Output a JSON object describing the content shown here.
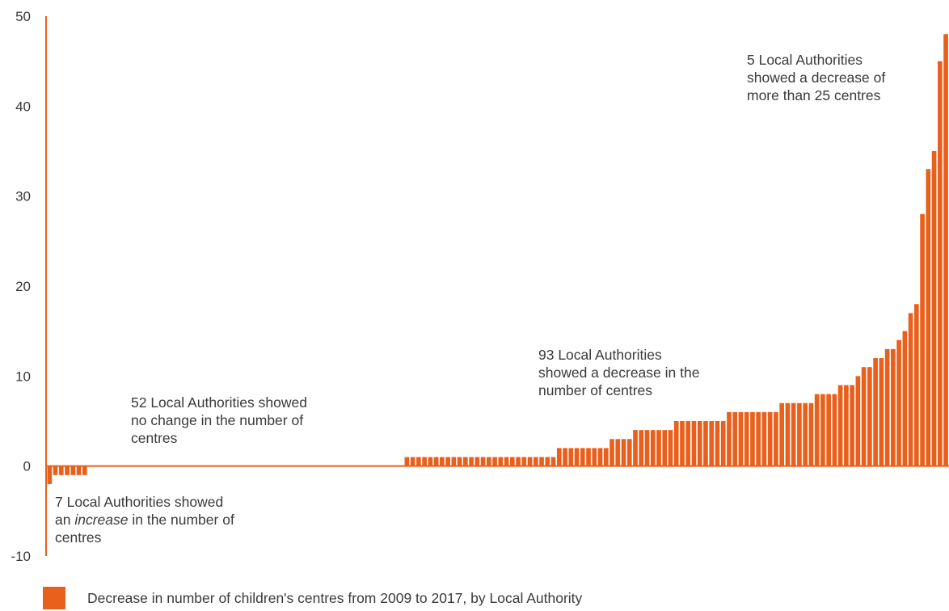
{
  "chart_data": {
    "type": "bar",
    "ylim": [
      -10,
      50
    ],
    "yticks": [
      "-10",
      "0",
      "10",
      "20",
      "30",
      "40",
      "50"
    ],
    "grid": false,
    "legend_position": "bottom-left",
    "color": "#e8601c",
    "series": [
      {
        "name": "Decrease in number of children's centres from 2009 to 2017, by Local Authority",
        "values": [
          -2,
          -1,
          -1,
          -1,
          -1,
          -1,
          -1,
          0,
          0,
          0,
          0,
          0,
          0,
          0,
          0,
          0,
          0,
          0,
          0,
          0,
          0,
          0,
          0,
          0,
          0,
          0,
          0,
          0,
          0,
          0,
          0,
          0,
          0,
          0,
          0,
          0,
          0,
          0,
          0,
          0,
          0,
          0,
          0,
          0,
          0,
          0,
          0,
          0,
          0,
          0,
          0,
          0,
          0,
          0,
          0,
          0,
          0,
          0,
          0,
          0,
          0,
          1,
          1,
          1,
          1,
          1,
          1,
          1,
          1,
          1,
          1,
          1,
          1,
          1,
          1,
          1,
          1,
          1,
          1,
          1,
          1,
          1,
          1,
          1,
          1,
          1,
          1,
          2,
          2,
          2,
          2,
          2,
          2,
          2,
          2,
          2,
          3,
          3,
          3,
          3,
          4,
          4,
          4,
          4,
          4,
          4,
          4,
          5,
          5,
          5,
          5,
          5,
          5,
          5,
          5,
          5,
          6,
          6,
          6,
          6,
          6,
          6,
          6,
          6,
          6,
          7,
          7,
          7,
          7,
          7,
          7,
          8,
          8,
          8,
          8,
          9,
          9,
          9,
          10,
          11,
          11,
          12,
          12,
          13,
          13,
          14,
          15,
          17,
          18,
          28,
          33,
          35,
          45,
          48
        ]
      }
    ],
    "annotations": {
      "increase_line1": "7 Local Authorities showed",
      "increase_line2_pre": "an ",
      "increase_line2_em": "increase",
      "increase_line2_post": " in the number of",
      "increase_line3": "centres",
      "nochange": [
        "52 Local Authorities showed",
        "no change in the number of",
        "centres"
      ],
      "decrease": [
        "93 Local Authorities",
        "showed a decrease in the",
        "number of centres"
      ],
      "large": [
        "5 Local Authorities",
        "showed a decrease of",
        "more than 25 centres"
      ]
    }
  }
}
